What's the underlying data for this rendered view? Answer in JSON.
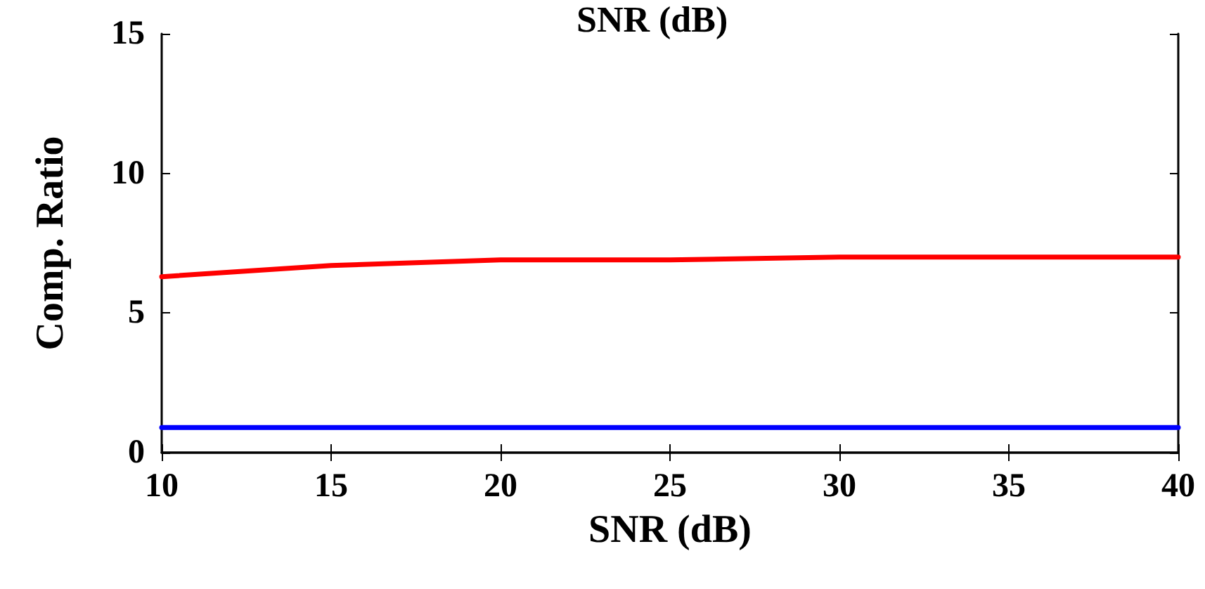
{
  "chart_data": {
    "type": "line",
    "title": "SNR (dB)",
    "xlabel": "SNR (dB)",
    "ylabel": "Comp. Ratio",
    "x": [
      10,
      15,
      20,
      25,
      30,
      35,
      40
    ],
    "series": [
      {
        "color": "#ff0000",
        "values": [
          6.3,
          6.7,
          6.9,
          6.9,
          7.0,
          7.0,
          7.0
        ]
      },
      {
        "color": "#0000ff",
        "values": [
          0.9,
          0.9,
          0.9,
          0.9,
          0.9,
          0.9,
          0.9
        ]
      }
    ],
    "xlim": [
      10,
      40
    ],
    "xticks": [
      10,
      15,
      20,
      25,
      30,
      35,
      40
    ],
    "ylim": [
      0,
      15
    ],
    "yticks": [
      0,
      5,
      10,
      15
    ],
    "grid": false,
    "marker": "none",
    "line_style": "solid"
  }
}
